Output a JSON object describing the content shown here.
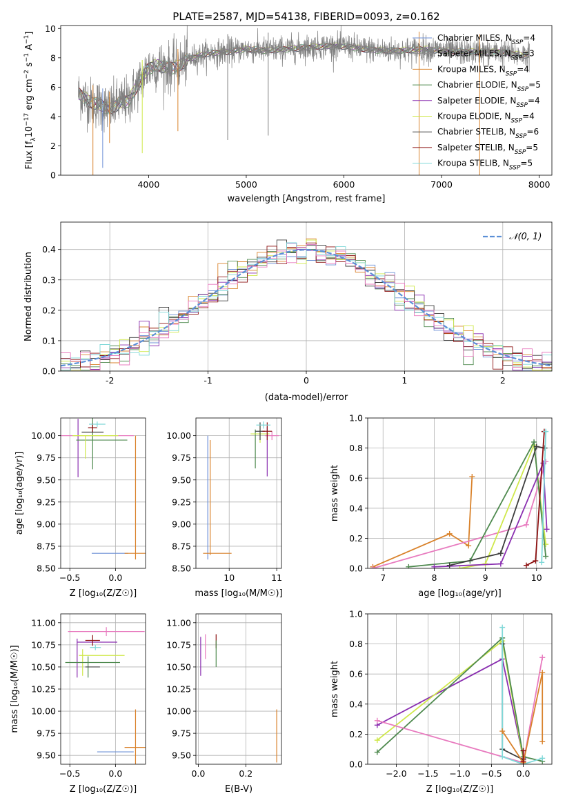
{
  "figure": {
    "title": "PLATE=2587, MJD=54138, FIBERID=0093, z=0.162"
  },
  "colors": {
    "Chabrier MILES": "#6b8fd6",
    "Salpeter MILES": "#8a8a8a",
    "Kroupa MILES": "#d9822b",
    "Chabrier ELODIE": "#4f8a4f",
    "Salpeter ELODIE": "#8a2fb0",
    "Kroupa ELODIE": "#cfe84a",
    "Chabrier STELIB": "#3c3c3c",
    "Salpeter STELIB": "#8c1010",
    "Kroupa STELIB": "#7fd8d8",
    "model_pink": "#e87bbf",
    "normal_curve": "#5b8fd6",
    "spectrum_data": "#808080"
  },
  "chart_data": [
    {
      "type": "line",
      "name": "spectrum",
      "xlabel": "wavelength [Angstrom, rest frame]",
      "ylabel": "Flux [f_λ 10^-17 erg cm^-2 s^-1 A^-1]",
      "xlim": [
        3100,
        8130
      ],
      "ylim": [
        0,
        10.2
      ],
      "xticks": [
        4000,
        5000,
        6000,
        7000,
        8000
      ],
      "yticks": [
        0,
        2,
        4,
        6,
        8,
        10
      ],
      "grid": false,
      "legend_position": "right",
      "legend": [
        {
          "label": "Chabrier MILES, N",
          "sub": "SSP",
          "tail": "=4",
          "color_key": "Chabrier MILES"
        },
        {
          "label": "Salpeter MILES, N",
          "sub": "SSP",
          "tail": "=3",
          "color_key": "Salpeter MILES"
        },
        {
          "label": "Kroupa MILES, N",
          "sub": "SSP",
          "tail": "=4",
          "color_key": "Kroupa MILES"
        },
        {
          "label": "Chabrier ELODIE, N",
          "sub": "SSP",
          "tail": "=5",
          "color_key": "Chabrier ELODIE"
        },
        {
          "label": "Salpeter ELODIE, N",
          "sub": "SSP",
          "tail": "=4",
          "color_key": "Salpeter ELODIE"
        },
        {
          "label": "Kroupa ELODIE, N",
          "sub": "SSP",
          "tail": "=4",
          "color_key": "Kroupa ELODIE"
        },
        {
          "label": "Chabrier STELIB, N",
          "sub": "SSP",
          "tail": "=6",
          "color_key": "Chabrier STELIB"
        },
        {
          "label": "Salpeter STELIB, N",
          "sub": "SSP",
          "tail": "=5",
          "color_key": "Salpeter STELIB"
        },
        {
          "label": "Kroupa STELIB, N",
          "sub": "SSP",
          "tail": "=5",
          "color_key": "Kroupa STELIB"
        }
      ],
      "continuum": {
        "wavelength": [
          3280,
          3400,
          3500,
          3600,
          3700,
          3800,
          3900,
          4000,
          4100,
          4200,
          4300,
          4400,
          4500,
          4600,
          4800,
          5000,
          5200,
          5400,
          5600,
          5800,
          6000,
          6200,
          6400,
          6600,
          6800,
          7000,
          7200,
          7400,
          7600,
          7800,
          7900
        ],
        "flux": [
          5.6,
          5.0,
          4.8,
          4.5,
          4.9,
          5.1,
          6.3,
          7.3,
          7.5,
          7.3,
          7.4,
          7.9,
          8.1,
          8.3,
          8.4,
          8.6,
          8.5,
          8.6,
          8.7,
          8.8,
          8.8,
          8.6,
          8.5,
          8.5,
          8.6,
          8.5,
          8.4,
          8.4,
          8.4,
          8.2,
          8.2
        ]
      },
      "spikes_down": [
        {
          "x": 3430,
          "y": 0.0
        },
        {
          "x": 3530,
          "y": 0.5
        },
        {
          "x": 3600,
          "y": 2.2
        },
        {
          "x": 3935,
          "y": 1.5
        },
        {
          "x": 4300,
          "y": 3.0
        },
        {
          "x": 4810,
          "y": 2.4
        },
        {
          "x": 5225,
          "y": 2.7
        },
        {
          "x": 6770,
          "y": 0.0
        },
        {
          "x": 7390,
          "y": 0.0
        }
      ]
    },
    {
      "type": "histogram",
      "name": "residuals",
      "xlabel": "(data-model)/error",
      "ylabel": "Normed distribution",
      "xlim": [
        -2.5,
        2.5
      ],
      "ylim": [
        0,
        0.49
      ],
      "xticks": [
        -2,
        -1,
        0,
        1,
        2
      ],
      "yticks": [
        0.0,
        0.1,
        0.2,
        0.3,
        0.4
      ],
      "grid": true,
      "bin_width": 0.1,
      "curve_label": "𝒩(0, 1)",
      "legend_position": "top-right"
    },
    {
      "type": "scatter",
      "name": "age_vs_Z",
      "xlabel": "Z [log10(Z/Z☉)]",
      "ylabel": "age  [log10(age/yr)]",
      "xlim": [
        -0.6,
        0.33
      ],
      "ylim": [
        8.5,
        10.2
      ],
      "xticks": [
        -0.5,
        0.0
      ],
      "yticks": [
        8.5,
        8.75,
        9.0,
        9.25,
        9.5,
        9.75,
        10.0
      ],
      "grid": true,
      "points": [
        {
          "model": "Chabrier MILES",
          "x": -0.06,
          "xerr": 0.2,
          "y": 8.67,
          "yerr": 0
        },
        {
          "model": "Kroupa MILES",
          "x": 0.22,
          "xerr": 0.12,
          "y": 8.67,
          "yerr": 0
        },
        {
          "model": "Kroupa MILES",
          "x": 0.22,
          "xerr": 0,
          "y": 9.3,
          "yerr": 0.7
        },
        {
          "model": "model_pink",
          "x": -0.2,
          "xerr": 0.4,
          "y": 10.0,
          "yerr": 0.0
        },
        {
          "model": "Salpeter ELODIE",
          "x": -0.41,
          "xerr": 0.0,
          "y": 9.86,
          "yerr": 0.33
        },
        {
          "model": "Chabrier ELODIE",
          "x": -0.15,
          "xerr": 0.28,
          "y": 9.95,
          "yerr": 0.0
        },
        {
          "model": "Chabrier ELODIE",
          "x": -0.25,
          "xerr": 0.0,
          "y": 9.97,
          "yerr": 0.35
        },
        {
          "model": "Kroupa ELODIE",
          "x": -0.22,
          "xerr": 0.25,
          "y": 10.0,
          "yerr": 0.0
        },
        {
          "model": "Kroupa ELODIE",
          "x": -0.33,
          "xerr": 0.0,
          "y": 9.87,
          "yerr": 0.13
        },
        {
          "model": "Chabrier STELIB",
          "x": -0.25,
          "xerr": 0.12,
          "y": 10.04,
          "yerr": 0.0
        },
        {
          "model": "Salpeter STELIB",
          "x": -0.25,
          "xerr": 0.05,
          "y": 10.09,
          "yerr": 0.05
        },
        {
          "model": "Kroupa STELIB",
          "x": -0.2,
          "xerr": 0.09,
          "y": 10.13,
          "yerr": 0.03
        }
      ]
    },
    {
      "type": "scatter",
      "name": "age_vs_mass",
      "xlabel": "mass [log10(M/M☉)]",
      "ylabel": "",
      "xlim": [
        9.3,
        11.1
      ],
      "ylim": [
        8.5,
        10.2
      ],
      "xticks": [
        10,
        11
      ],
      "yticks": [
        8.5,
        8.75,
        9.0,
        9.25,
        9.5,
        9.75,
        10.0
      ],
      "grid": true,
      "points": [
        {
          "model": "Chabrier MILES",
          "x": 9.55,
          "xerr": 0.0,
          "y": 9.3,
          "yerr": 0.7
        },
        {
          "model": "Kroupa MILES",
          "x": 9.6,
          "xerr": 0.0,
          "y": 9.3,
          "yerr": 0.65
        },
        {
          "model": "Kroupa MILES",
          "x": 9.75,
          "xerr": 0.3,
          "y": 8.67,
          "yerr": 0.0
        },
        {
          "model": "model_pink",
          "x": 10.9,
          "xerr": 0.15,
          "y": 10.0,
          "yerr": 0.05
        },
        {
          "model": "Salpeter ELODIE",
          "x": 10.8,
          "xerr": 0.0,
          "y": 9.82,
          "yerr": 0.28
        },
        {
          "model": "Chabrier ELODIE",
          "x": 10.55,
          "xerr": 0.0,
          "y": 9.85,
          "yerr": 0.22
        },
        {
          "model": "Kroupa ELODIE",
          "x": 10.65,
          "xerr": 0.2,
          "y": 10.02,
          "yerr": 0.1
        },
        {
          "model": "Chabrier STELIB",
          "x": 10.65,
          "xerr": 0.1,
          "y": 10.05,
          "yerr": 0.1
        },
        {
          "model": "Salpeter STELIB",
          "x": 10.8,
          "xerr": 0.1,
          "y": 10.05,
          "yerr": 0.1
        },
        {
          "model": "Kroupa STELIB",
          "x": 10.72,
          "xerr": 0.15,
          "y": 10.12,
          "yerr": 0.04
        }
      ]
    },
    {
      "type": "line",
      "name": "mass_weight_vs_age",
      "xlabel": "age  [log10(age/yr)]",
      "ylabel": "mass weight",
      "xlim": [
        6.7,
        10.3
      ],
      "ylim": [
        0,
        1.0
      ],
      "xticks": [
        7,
        8,
        9,
        10
      ],
      "yticks": [
        0.0,
        0.2,
        0.4,
        0.6,
        0.8,
        1.0
      ],
      "grid": true,
      "series": [
        {
          "model": "Kroupa MILES",
          "x": [
            6.8,
            8.3,
            8.67,
            8.74
          ],
          "y": [
            0.01,
            0.23,
            0.15,
            0.61
          ]
        },
        {
          "model": "model_pink",
          "x": [
            6.8,
            9.8,
            10.18
          ],
          "y": [
            0.0,
            0.29,
            0.71
          ]
        },
        {
          "model": "Kroupa ELODIE",
          "x": [
            8.5,
            9.0,
            9.95,
            10.18
          ],
          "y": [
            0.0,
            0.03,
            0.82,
            0.16
          ]
        },
        {
          "model": "Chabrier ELODIE",
          "x": [
            7.5,
            8.7,
            9.95,
            10.18
          ],
          "y": [
            0.01,
            0.05,
            0.84,
            0.08
          ]
        },
        {
          "model": "Salpeter ELODIE",
          "x": [
            8.0,
            9.3,
            10.13,
            10.2
          ],
          "y": [
            0.01,
            0.03,
            0.7,
            0.26
          ]
        },
        {
          "model": "Chabrier STELIB",
          "x": [
            8.3,
            9.3,
            10.0,
            10.16
          ],
          "y": [
            0.02,
            0.1,
            0.81,
            0.8
          ]
        },
        {
          "model": "Salpeter STELIB",
          "x": [
            9.8,
            9.98,
            10.15
          ],
          "y": [
            0.02,
            0.05,
            0.91
          ]
        },
        {
          "model": "Kroupa STELIB",
          "x": [
            10.1,
            10.18
          ],
          "y": [
            0.04,
            0.91
          ]
        }
      ]
    },
    {
      "type": "scatter",
      "name": "mass_vs_Z",
      "xlabel": "Z [log10(Z/Z☉)]",
      "ylabel": "mass [log10(M/M☉)]",
      "xlim": [
        -0.6,
        0.33
      ],
      "ylim": [
        9.4,
        11.1
      ],
      "xticks": [
        -0.5,
        0.0
      ],
      "yticks": [
        9.5,
        9.75,
        10.0,
        10.25,
        10.5,
        10.75,
        11.0
      ],
      "grid": true,
      "points": [
        {
          "model": "model_pink",
          "x": -0.1,
          "xerr": 0.42,
          "y": 10.9,
          "yerr": 0.05
        },
        {
          "model": "Salpeter ELODIE",
          "x": -0.2,
          "xerr": 0.22,
          "y": 10.78,
          "yerr": 0.0
        },
        {
          "model": "Salpeter ELODIE",
          "x": -0.42,
          "xerr": 0.0,
          "y": 10.6,
          "yerr": 0.22
        },
        {
          "model": "Salpeter STELIB",
          "x": -0.25,
          "xerr": 0.08,
          "y": 10.8,
          "yerr": 0.06
        },
        {
          "model": "Kroupa STELIB",
          "x": -0.22,
          "xerr": 0.06,
          "y": 10.72,
          "yerr": 0.03
        },
        {
          "model": "Kroupa ELODIE",
          "x": -0.15,
          "xerr": 0.25,
          "y": 10.63,
          "yerr": 0.0
        },
        {
          "model": "Kroupa ELODIE",
          "x": -0.36,
          "xerr": 0.0,
          "y": 10.55,
          "yerr": 0.15
        },
        {
          "model": "Chabrier ELODIE",
          "x": -0.25,
          "xerr": 0.3,
          "y": 10.55,
          "yerr": 0.0
        },
        {
          "model": "Chabrier ELODIE",
          "x": -0.3,
          "xerr": 0.0,
          "y": 10.5,
          "yerr": 0.12
        },
        {
          "model": "Chabrier STELIB",
          "x": -0.25,
          "xerr": 0.08,
          "y": 10.5,
          "yerr": 0.0
        },
        {
          "model": "Kroupa MILES",
          "x": 0.22,
          "xerr": 0.12,
          "y": 9.59,
          "yerr": 0.0
        },
        {
          "model": "Kroupa MILES",
          "x": 0.22,
          "xerr": 0.0,
          "y": 9.7,
          "yerr": 0.32
        },
        {
          "model": "Chabrier MILES",
          "x": 0.0,
          "xerr": 0.2,
          "y": 9.54,
          "yerr": 0.0
        }
      ]
    },
    {
      "type": "scatter",
      "name": "mass_vs_EBV",
      "xlabel": "E(B-V)",
      "ylabel": "",
      "xlim": [
        -0.01,
        0.35
      ],
      "ylim": [
        9.4,
        11.1
      ],
      "xticks": [
        0.0,
        0.2
      ],
      "yticks": [
        9.5,
        9.75,
        10.0,
        10.25,
        10.5,
        10.75,
        11.0
      ],
      "grid": true,
      "points": [
        {
          "model": "Salpeter ELODIE",
          "x": 0.01,
          "xerr": 0.0,
          "y": 10.62,
          "yerr": 0.22
        },
        {
          "model": "model_pink",
          "x": 0.03,
          "xerr": 0.0,
          "y": 10.73,
          "yerr": 0.14
        },
        {
          "model": "Salpeter STELIB",
          "x": 0.075,
          "xerr": 0.0,
          "y": 10.79,
          "yerr": 0.08
        },
        {
          "model": "Chabrier ELODIE",
          "x": 0.075,
          "xerr": 0.0,
          "y": 10.65,
          "yerr": 0.15
        },
        {
          "model": "Kroupa MILES",
          "x": 0.33,
          "xerr": 0.0,
          "y": 9.72,
          "yerr": 0.3
        }
      ]
    },
    {
      "type": "line",
      "name": "mass_weight_vs_Z",
      "xlabel": "Z [log10(Z/Z☉)]",
      "ylabel": "mass weight",
      "xlim": [
        -2.45,
        0.45
      ],
      "ylim": [
        0,
        1.0
      ],
      "xticks": [
        -2.0,
        -1.5,
        -1.0,
        -0.5,
        0.0
      ],
      "yticks": [
        0.0,
        0.2,
        0.4,
        0.6,
        0.8,
        1.0
      ],
      "grid": true,
      "series": [
        {
          "model": "Salpeter ELODIE",
          "x": [
            -2.3,
            -0.33,
            0.0
          ],
          "y": [
            0.26,
            0.7,
            0.04
          ]
        },
        {
          "model": "Kroupa ELODIE",
          "x": [
            -2.3,
            -0.33,
            0.0
          ],
          "y": [
            0.16,
            0.82,
            0.03
          ]
        },
        {
          "model": "Chabrier ELODIE",
          "x": [
            -2.3,
            -0.33,
            0.0,
            0.3
          ],
          "y": [
            0.08,
            0.84,
            0.05,
            0.02
          ]
        },
        {
          "model": "model_pink",
          "x": [
            -2.3,
            0.0,
            0.3,
            0.3
          ],
          "y": [
            0.29,
            0.01,
            0.71,
            0.71
          ]
        },
        {
          "model": "Chabrier STELIB",
          "x": [
            -0.33,
            -0.33,
            0.0
          ],
          "y": [
            0.8,
            0.1,
            0.03
          ]
        },
        {
          "model": "Kroupa STELIB",
          "x": [
            -0.33,
            -0.33,
            0.0,
            0.3
          ],
          "y": [
            0.91,
            0.05,
            0.0,
            0.04
          ]
        },
        {
          "model": "Kroupa MILES",
          "x": [
            -0.33,
            0.0,
            0.3,
            0.3
          ],
          "y": [
            0.22,
            0.01,
            0.61,
            0.15
          ]
        },
        {
          "model": "Salpeter STELIB",
          "x": [
            0.0,
            0.0
          ],
          "y": [
            0.02,
            0.09
          ]
        }
      ]
    }
  ]
}
